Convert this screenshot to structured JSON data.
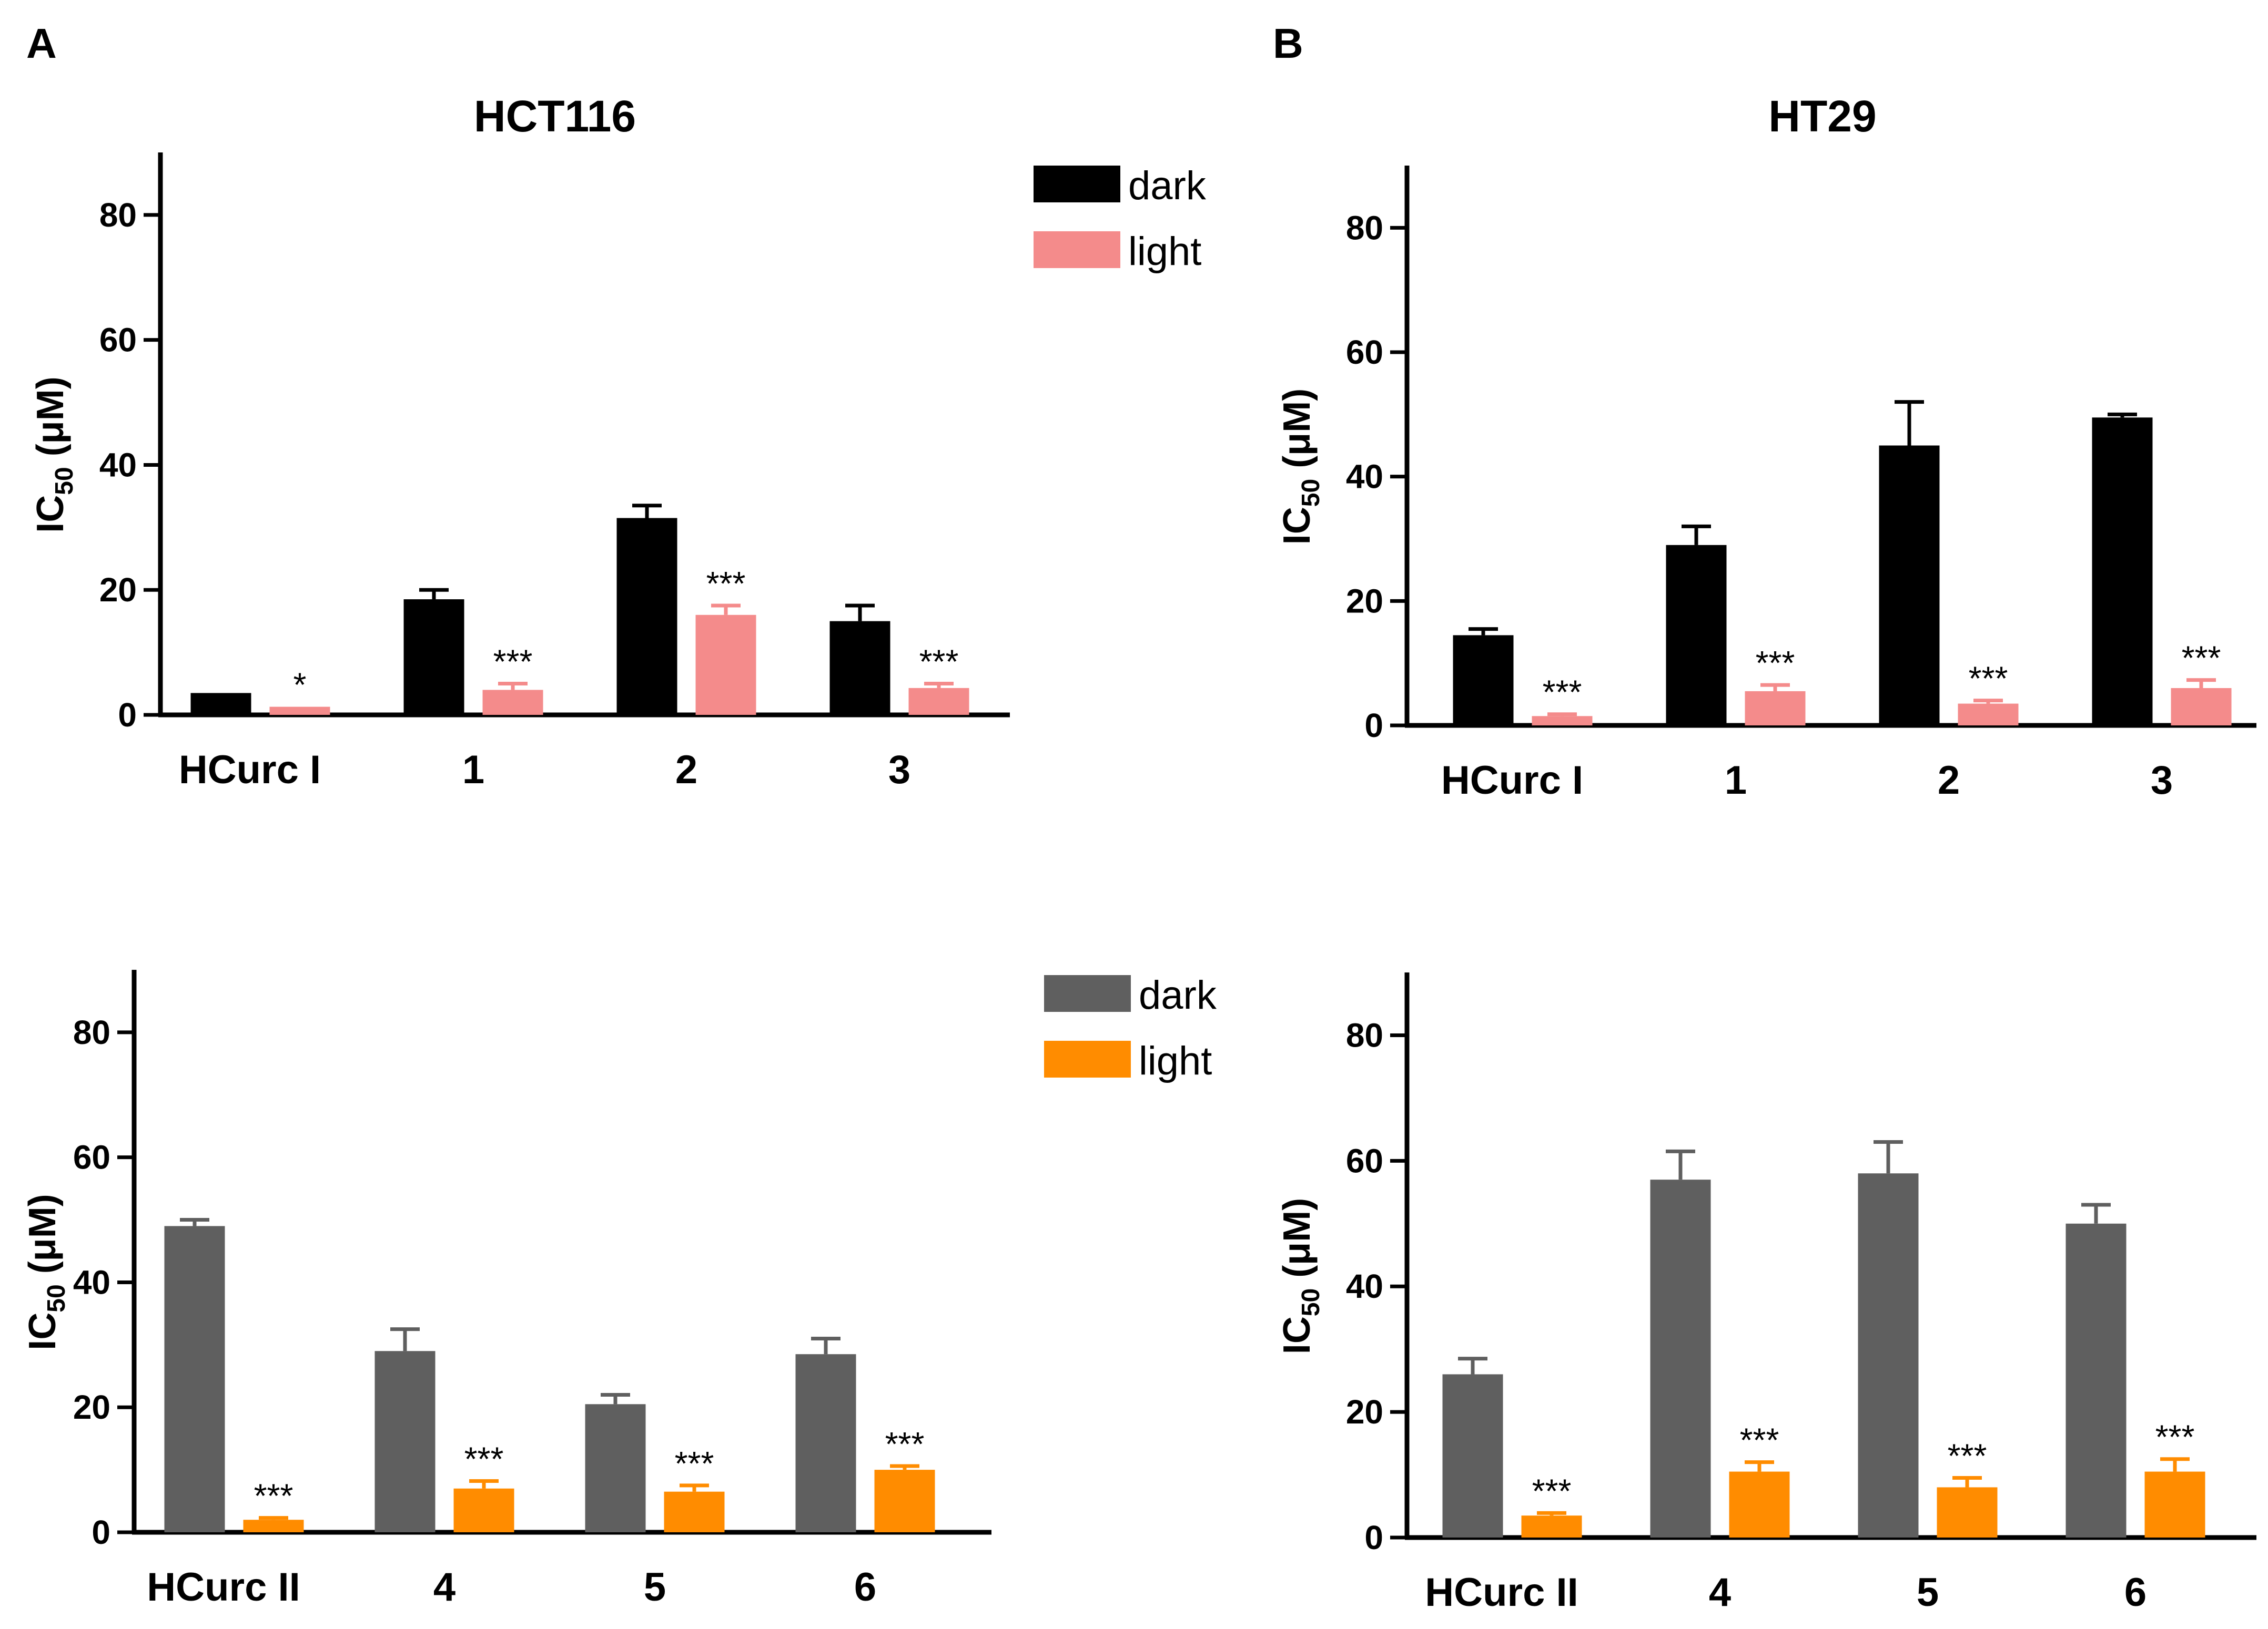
{
  "panels": [
    {
      "letter": "A"
    },
    {
      "letter": "B"
    }
  ],
  "chart_data": [
    {
      "type": "bar",
      "title": "HCT116",
      "ylabel_main": "IC",
      "ylabel_sub": "50",
      "ylabel_unit": " (μM)",
      "ylim": [
        0,
        90
      ],
      "yticks": [
        0,
        20,
        40,
        60,
        80
      ],
      "categories": [
        "HCurc I",
        "1",
        "2",
        "3"
      ],
      "legend": "top-right",
      "series": [
        {
          "name": "dark",
          "color": "#000000",
          "values": [
            3.5,
            18.5,
            31.5,
            15
          ],
          "errors": [
            0,
            1.5,
            2,
            2.5
          ]
        },
        {
          "name": "light",
          "color": "#f48b8b",
          "values": [
            1.3,
            4,
            16,
            4.3
          ],
          "errors": [
            0,
            1,
            1.5,
            0.7
          ],
          "significance": [
            "*",
            "***",
            "***",
            "***"
          ]
        }
      ]
    },
    {
      "type": "bar",
      "title": "HT29",
      "ylabel_main": "IC",
      "ylabel_sub": "50",
      "ylabel_unit": " (μM)",
      "ylim": [
        0,
        90
      ],
      "yticks": [
        0,
        20,
        40,
        60,
        80
      ],
      "categories": [
        "HCurc I",
        "1",
        "2",
        "3"
      ],
      "series": [
        {
          "name": "dark",
          "color": "#000000",
          "values": [
            14.5,
            29,
            45,
            49.5
          ],
          "errors": [
            1,
            3,
            7,
            0.5
          ]
        },
        {
          "name": "light",
          "color": "#f48b8b",
          "values": [
            1.5,
            5.5,
            3.5,
            6
          ],
          "errors": [
            0.3,
            1,
            0.5,
            1.3
          ],
          "significance": [
            "***",
            "***",
            "***",
            "***"
          ]
        }
      ]
    },
    {
      "type": "bar",
      "ylabel_main": "IC",
      "ylabel_sub": "50",
      "ylabel_unit": " (μM)",
      "ylim": [
        0,
        90
      ],
      "yticks": [
        0,
        20,
        40,
        60,
        80
      ],
      "categories": [
        "HCurc II",
        "4",
        "5",
        "6"
      ],
      "legend": "top-right",
      "series": [
        {
          "name": "dark",
          "color": "#5f5f5f",
          "values": [
            49,
            29,
            20.5,
            28.5
          ],
          "errors": [
            1,
            3.5,
            1.5,
            2.5
          ]
        },
        {
          "name": "light",
          "color": "#ff8c00",
          "values": [
            2,
            7,
            6.5,
            10
          ],
          "errors": [
            0.3,
            1.2,
            1,
            0.6
          ],
          "significance": [
            "***",
            "***",
            "***",
            "***"
          ]
        }
      ]
    },
    {
      "type": "bar",
      "ylabel_main": "IC",
      "ylabel_sub": "50",
      "ylabel_unit": " (μM)",
      "ylim": [
        0,
        90
      ],
      "yticks": [
        0,
        20,
        40,
        60,
        80
      ],
      "categories": [
        "HCurc II",
        "4",
        "5",
        "6"
      ],
      "series": [
        {
          "name": "dark",
          "color": "#5f5f5f",
          "values": [
            26,
            57,
            58,
            50
          ],
          "errors": [
            2.5,
            4.5,
            5,
            3
          ]
        },
        {
          "name": "light",
          "color": "#ff8c00",
          "values": [
            3.5,
            10.5,
            8,
            10.5
          ],
          "errors": [
            0.4,
            1.5,
            1.5,
            2
          ],
          "significance": [
            "***",
            "***",
            "***",
            "***"
          ]
        }
      ]
    }
  ]
}
